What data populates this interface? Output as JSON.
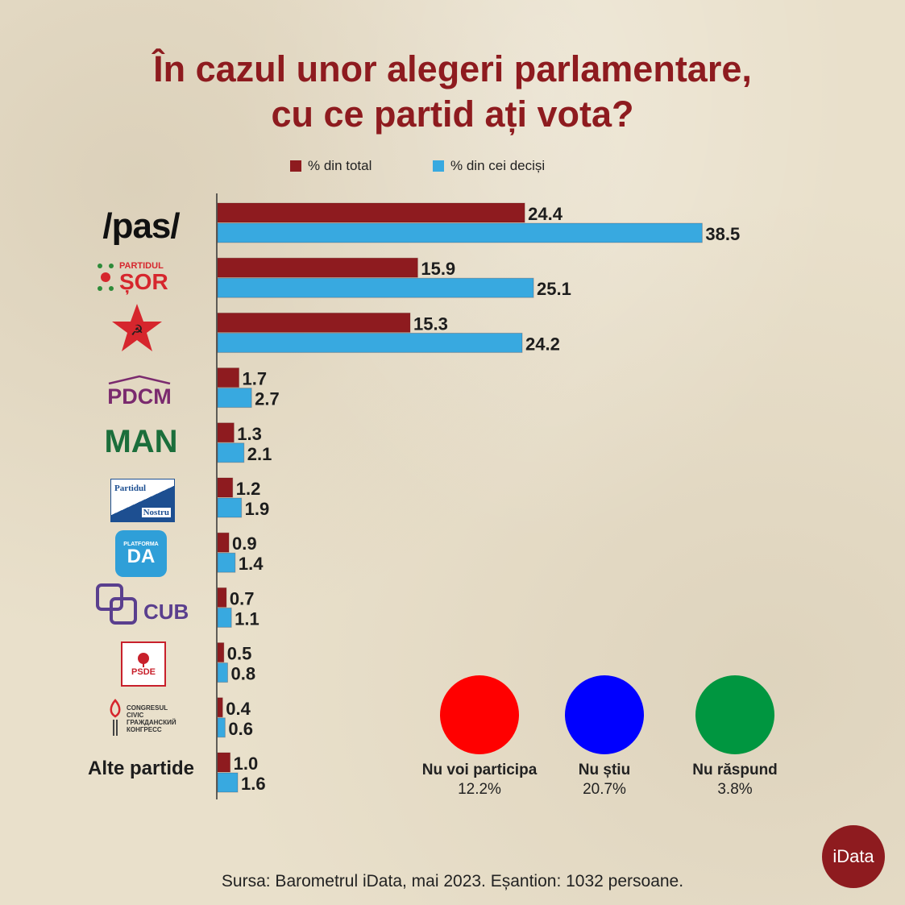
{
  "title_line1": "În cazul unor alegeri parlamentare,",
  "title_line2": "cu ce partid ați vota?",
  "legend": [
    {
      "label": "% din total",
      "color": "#8e1b1f"
    },
    {
      "label": "% din cei deciși",
      "color": "#38a9e0"
    }
  ],
  "chart_data": {
    "type": "bar",
    "orientation": "horizontal",
    "categories": [
      "/pas/",
      "Partidul ȘOR",
      "PCRM",
      "PDCM",
      "MAN",
      "Partidul Nostru",
      "Platforma DA",
      "CUB",
      "PSDE",
      "Congresul Civic",
      "Alte partide"
    ],
    "series": [
      {
        "name": "% din total",
        "color": "#8e1b1f",
        "values": [
          24.4,
          15.9,
          15.3,
          1.7,
          1.3,
          1.2,
          0.9,
          0.7,
          0.5,
          0.4,
          1.0
        ]
      },
      {
        "name": "% din cei deciși",
        "color": "#38a9e0",
        "values": [
          38.5,
          25.1,
          24.2,
          2.7,
          2.1,
          1.9,
          1.4,
          1.1,
          0.8,
          0.6,
          1.6
        ]
      }
    ],
    "xlim": [
      0,
      40
    ],
    "grid": false,
    "legend_position": "top"
  },
  "logos": {
    "pas": "/pas/",
    "sor_small": "PARTIDUL",
    "sor_big": "ȘOR",
    "pdcm": "PDCM",
    "man": "MAN",
    "nostru_1": "Partidul",
    "nostru_2": "Nostru",
    "da_small": "PLATFORMA",
    "da_big": "DA",
    "cub": "CUB",
    "psde": "PSDE",
    "cc_1": "CONGRESUL",
    "cc_2": "CIVIC",
    "cc_3": "ГРАЖДАНСКИЙ",
    "cc_4": "КОНГРЕСС"
  },
  "others_label": "Alte partide",
  "circles": [
    {
      "label": "Nu voi participa",
      "value": "12.2%",
      "color": "#ff0000"
    },
    {
      "label": "Nu știu",
      "value": "20.7%",
      "color": "#0000ff"
    },
    {
      "label": "Nu răspund",
      "value": "3.8%",
      "color": "#009640"
    }
  ],
  "source": "Sursa: Barometrul iData, mai 2023. Eșantion: 1032 persoane.",
  "brand": "iData"
}
